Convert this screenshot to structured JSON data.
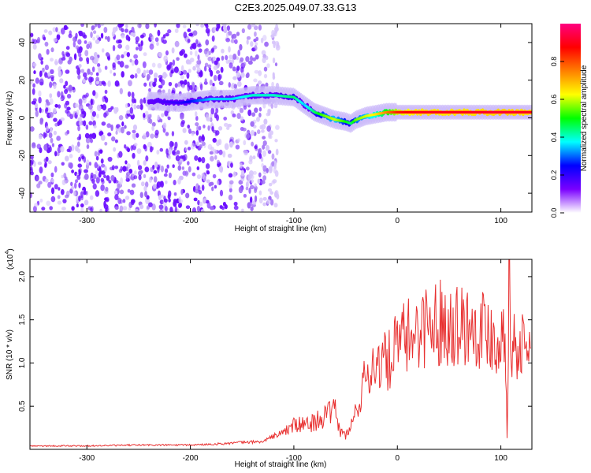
{
  "title": "C2E3.2025.049.07.33.G13",
  "chart_data": [
    {
      "type": "heatmap",
      "xlabel": "Height of straight line (km)",
      "ylabel": "Frequency (Hz)",
      "xlim": [
        -355,
        130
      ],
      "ylim": [
        -50,
        50
      ],
      "x_ticks": [
        -300,
        -200,
        -100,
        0,
        100
      ],
      "x_tick_labels": [
        "-300",
        "-200",
        "-100",
        "0",
        "100"
      ],
      "y_ticks": [
        -40,
        -20,
        0,
        20,
        40
      ],
      "y_tick_labels": [
        "-40",
        "-20",
        "0",
        "20",
        "40"
      ],
      "colorbar": {
        "label": "Normalized spectral amplitude",
        "range": [
          0,
          1
        ],
        "ticks": [
          0.0,
          0.2,
          0.4,
          0.6,
          0.8
        ],
        "tick_labels": [
          "0.0",
          "0.2",
          "0.4",
          "0.6",
          "0.8"
        ],
        "colors": [
          "#ffffff",
          "#7a00ff",
          "#0000ff",
          "#00ffff",
          "#00ff00",
          "#ffff00",
          "#ff7f00",
          "#ff0000",
          "#ff0080"
        ]
      },
      "ridge": {
        "x": [
          -240,
          -210,
          -180,
          -160,
          -140,
          -120,
          -100,
          -90,
          -80,
          -70,
          -60,
          -50,
          -45,
          -40,
          -30,
          -20,
          -10,
          0,
          20,
          60,
          100,
          130
        ],
        "freq": [
          9,
          8,
          10,
          10,
          12,
          12,
          11,
          7,
          3,
          1,
          -1,
          -2,
          -3,
          -1,
          1,
          2,
          3,
          3,
          3,
          3,
          3,
          3
        ],
        "amplitude": [
          0.15,
          0.2,
          0.35,
          0.35,
          0.4,
          0.4,
          0.45,
          0.35,
          0.45,
          0.55,
          0.6,
          0.5,
          0.45,
          0.55,
          0.6,
          0.65,
          0.75,
          0.85,
          0.9,
          0.9,
          0.92,
          0.9
        ]
      },
      "noise_region_x": [
        -355,
        -115
      ]
    },
    {
      "type": "line",
      "xlabel": "Height of straight line (km)",
      "ylabel": "SNR (10 * v/v)",
      "y_multiplier_label": "(x10",
      "y_multiplier_exponent": "4",
      "y_multiplier_close": ")",
      "xlim": [
        -355,
        130
      ],
      "ylim": [
        0,
        22000
      ],
      "x_ticks": [
        -300,
        -200,
        -100,
        0,
        100
      ],
      "x_tick_labels": [
        "-300",
        "-200",
        "-100",
        "0",
        "100"
      ],
      "y_ticks": [
        5000,
        10000,
        15000,
        20000
      ],
      "y_tick_labels": [
        "0.5",
        "1.0",
        "1.5",
        "2.0"
      ],
      "color": "#e83030",
      "series": [
        {
          "x": [
            -355,
            -300,
            -250,
            -200,
            -170,
            -150,
            -130,
            -120,
            -110,
            -100,
            -90,
            -80,
            -70,
            -60,
            -55,
            -50,
            -45,
            -40,
            -35,
            -30,
            -25,
            -20,
            -15,
            -10,
            -5,
            0,
            10,
            20,
            30,
            40,
            50,
            60,
            70,
            80,
            90,
            95,
            100,
            104,
            106,
            108,
            110,
            115,
            120,
            130
          ],
          "y": [
            400,
            400,
            500,
            500,
            650,
            800,
            900,
            1500,
            2000,
            2800,
            2800,
            3200,
            3800,
            4500,
            2000,
            1600,
            2500,
            4500,
            6500,
            8500,
            9500,
            10000,
            10500,
            9800,
            11000,
            12000,
            13000,
            14000,
            14500,
            14800,
            14800,
            14600,
            14500,
            14300,
            13500,
            13000,
            12500,
            14000,
            2000,
            21500,
            12000,
            12000,
            11800,
            11600
          ]
        }
      ]
    }
  ]
}
